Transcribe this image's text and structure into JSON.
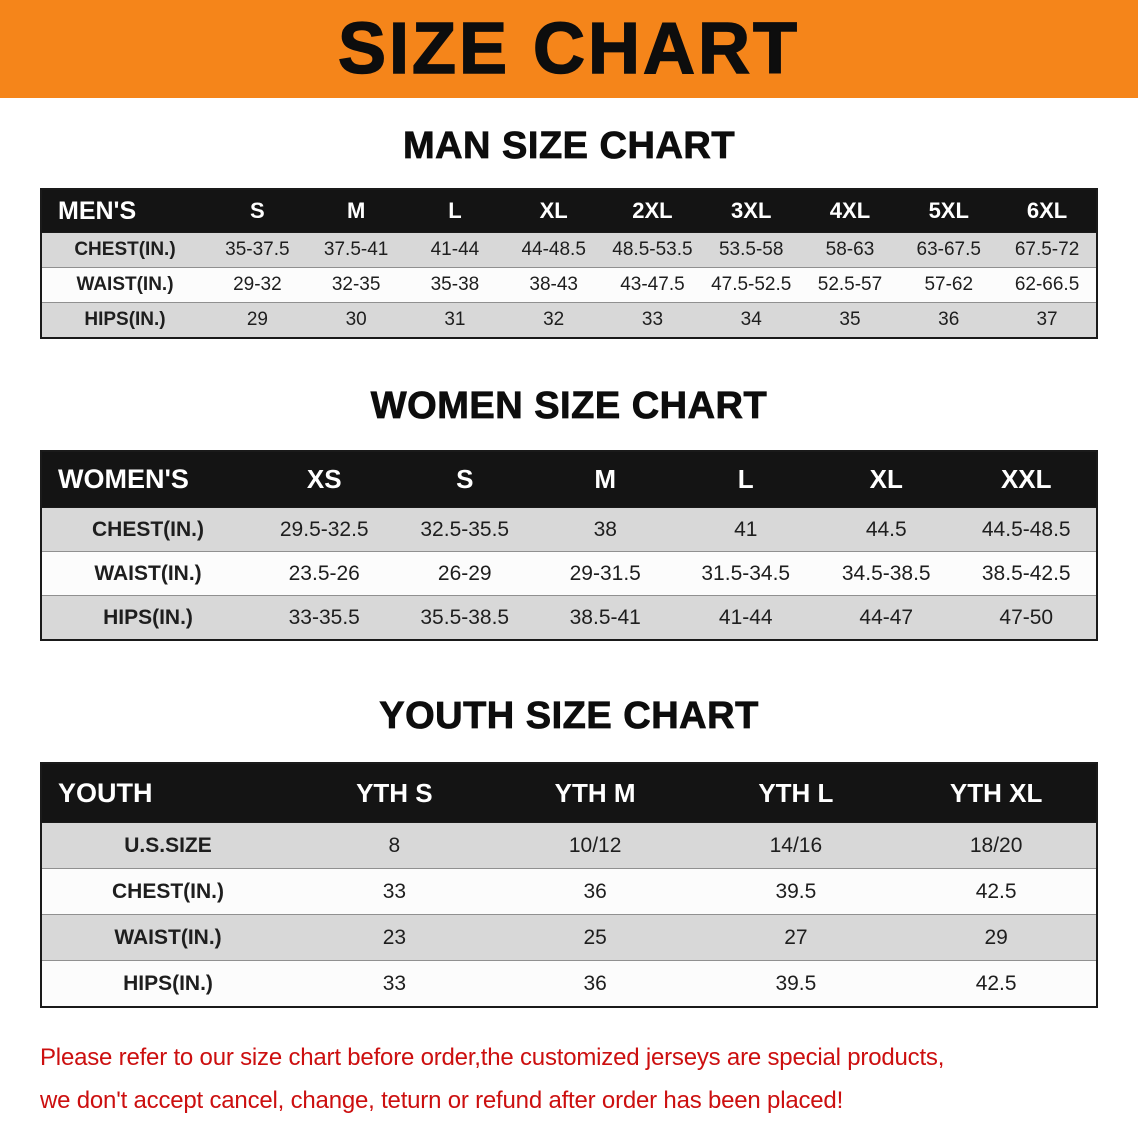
{
  "banner": {
    "title": "SIZE CHART"
  },
  "colors": {
    "banner_bg": "#f5851a",
    "table_header_bg": "#141414",
    "row_alt_gray": "#d8d8d8",
    "note_red": "#cc0f0f"
  },
  "chart_data": [
    {
      "type": "table",
      "title": "MAN SIZE CHART",
      "header": [
        "MEN'S",
        "S",
        "M",
        "L",
        "XL",
        "2XL",
        "3XL",
        "4XL",
        "5XL",
        "6XL"
      ],
      "rows": [
        [
          "CHEST(IN.)",
          "35-37.5",
          "37.5-41",
          "41-44",
          "44-48.5",
          "48.5-53.5",
          "53.5-58",
          "58-63",
          "63-67.5",
          "67.5-72"
        ],
        [
          "WAIST(IN.)",
          "29-32",
          "32-35",
          "35-38",
          "38-43",
          "43-47.5",
          "47.5-52.5",
          "52.5-57",
          "57-62",
          "62-66.5"
        ],
        [
          "HIPS(IN.)",
          "29",
          "30",
          "31",
          "32",
          "33",
          "34",
          "35",
          "36",
          "37"
        ]
      ]
    },
    {
      "type": "table",
      "title": "WOMEN SIZE CHART",
      "header": [
        "WOMEN'S",
        "XS",
        "S",
        "M",
        "L",
        "XL",
        "XXL"
      ],
      "rows": [
        [
          "CHEST(IN.)",
          "29.5-32.5",
          "32.5-35.5",
          "38",
          "41",
          "44.5",
          "44.5-48.5"
        ],
        [
          "WAIST(IN.)",
          "23.5-26",
          "26-29",
          "29-31.5",
          "31.5-34.5",
          "34.5-38.5",
          "38.5-42.5"
        ],
        [
          "HIPS(IN.)",
          "33-35.5",
          "35.5-38.5",
          "38.5-41",
          "41-44",
          "44-47",
          "47-50"
        ]
      ]
    },
    {
      "type": "table",
      "title": "YOUTH SIZE CHART",
      "header": [
        "YOUTH",
        "YTH S",
        "YTH M",
        "YTH L",
        "YTH XL"
      ],
      "rows": [
        [
          "U.S.SIZE",
          "8",
          "10/12",
          "14/16",
          "18/20"
        ],
        [
          "CHEST(IN.)",
          "33",
          "36",
          "39.5",
          "42.5"
        ],
        [
          "WAIST(IN.)",
          "23",
          "25",
          "27",
          "29"
        ],
        [
          "HIPS(IN.)",
          "33",
          "36",
          "39.5",
          "42.5"
        ]
      ]
    }
  ],
  "footnote": {
    "line1": "Please refer to our size chart before order,the customized jerseys are special products,",
    "line2": "we don't accept cancel, change, teturn or refund after order has been placed!"
  }
}
